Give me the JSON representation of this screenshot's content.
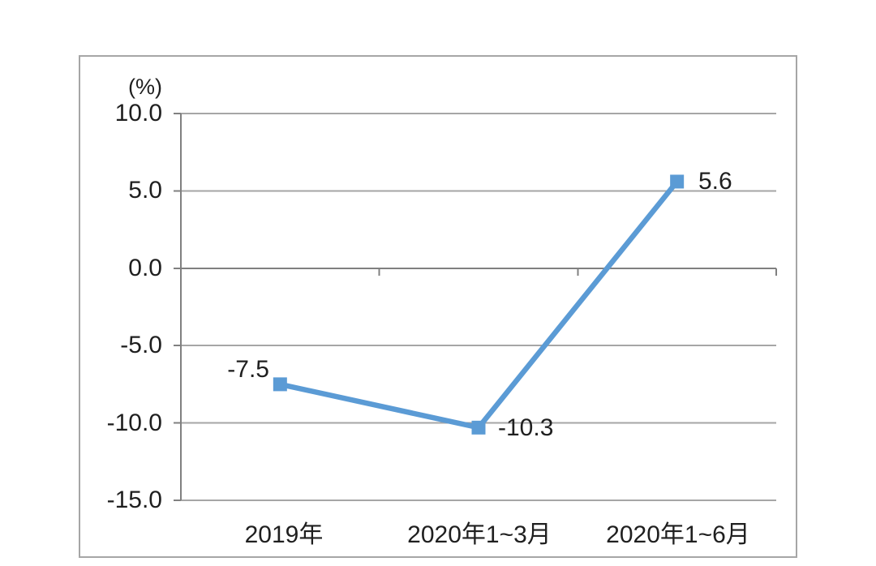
{
  "chart_data": {
    "type": "line",
    "title": "",
    "unit_label": "(%)",
    "categories": [
      "2019年",
      "2020年1~3月",
      "2020年1~6月"
    ],
    "series": [
      {
        "name": "growth-rate",
        "values": [
          -7.5,
          -10.3,
          5.6
        ]
      }
    ],
    "data_labels": [
      "-7.5",
      "-10.3",
      "5.6"
    ],
    "ytick_labels": [
      "10.0",
      "5.0",
      "0.0",
      "-5.0",
      "-10.0",
      "-15.0"
    ],
    "ytick_values": [
      10.0,
      5.0,
      0.0,
      -5.0,
      -10.0,
      -15.0
    ],
    "ylim": [
      -15.0,
      10.0
    ],
    "xlabel": "",
    "ylabel": "(%)",
    "grid": true,
    "legend_position": "none",
    "marker_shape": "square",
    "colors": {
      "line": "#5b9bd5",
      "marker": "#5b9bd5",
      "gridline": "#a6a6a6",
      "axis": "#808080",
      "text": "#1f1f1f",
      "frame_border": "#a6a6a6",
      "background": "#ffffff"
    }
  }
}
